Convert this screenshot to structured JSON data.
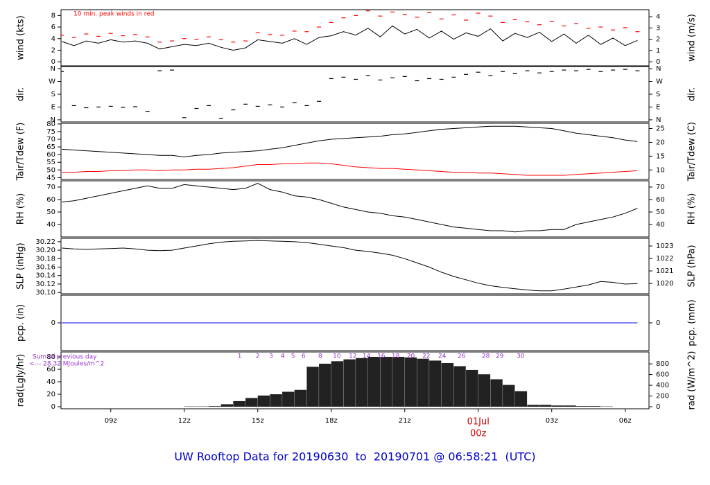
{
  "title": "UW Rooftop Data for 20190630  to  20190701 @ 06:58:21  (UTC)",
  "x_axis": {
    "xlim": [
      6.97,
      30.97
    ],
    "xticks": [
      {
        "value": 9,
        "label": "09z"
      },
      {
        "value": 12,
        "label": "12z"
      },
      {
        "value": 15,
        "label": "15z"
      },
      {
        "value": 18,
        "label": "18z"
      },
      {
        "value": 21,
        "label": "21z"
      },
      {
        "value": 24,
        "label": "00z"
      },
      {
        "value": 27,
        "label": "03z"
      },
      {
        "value": 30,
        "label": "06z"
      }
    ],
    "date_label": {
      "value": 24,
      "label": "01Jul"
    },
    "highlight_color": "#cc0000",
    "x": [
      7,
      7.5,
      8,
      8.5,
      9,
      9.5,
      10,
      10.5,
      11,
      11.5,
      12,
      12.5,
      13,
      13.5,
      14,
      14.5,
      15,
      15.5,
      16,
      16.5,
      17,
      17.5,
      18,
      18.5,
      19,
      19.5,
      20,
      20.5,
      21,
      21.5,
      22,
      22.5,
      23,
      23.5,
      24,
      24.5,
      25,
      25.5,
      26,
      26.5,
      27,
      27.5,
      28,
      28.5,
      29,
      29.5,
      30,
      30.5
    ]
  },
  "chart_data": [
    {
      "type": "line",
      "ylabel": "wind (kts)",
      "y2label": "wind (m/s)",
      "ylim": [
        -0.7,
        9
      ],
      "yticks": [
        0,
        2,
        4,
        6,
        8
      ],
      "y2lim": [
        -0.36,
        4.62
      ],
      "y2ticks": [
        0,
        1,
        2,
        3,
        4
      ],
      "annotation": {
        "text": "10 min. peak winds in red",
        "color": "#ff0000"
      },
      "series": [
        {
          "color": "#000000",
          "style": "line",
          "values": [
            3.5,
            2.8,
            3.6,
            3.2,
            3.8,
            3.4,
            3.6,
            3.2,
            2.2,
            2.6,
            3.0,
            2.8,
            3.2,
            2.5,
            2.0,
            2.4,
            3.8,
            3.5,
            3.2,
            4.0,
            3.0,
            4.2,
            4.5,
            5.2,
            4.6,
            5.8,
            4.3,
            6.2,
            4.8,
            5.6,
            4.1,
            5.3,
            3.9,
            5.0,
            4.4,
            5.7,
            3.6,
            4.9,
            4.2,
            5.1,
            3.5,
            4.8,
            3.2,
            4.6,
            3.0,
            4.1,
            2.8,
            3.7
          ]
        },
        {
          "color": "#ff0000",
          "style": "dash",
          "values": [
            4.6,
            4.2,
            4.8,
            4.4,
            4.9,
            4.5,
            4.7,
            4.3,
            3.4,
            3.6,
            4.0,
            3.9,
            4.3,
            3.8,
            3.4,
            3.6,
            5.0,
            4.7,
            4.6,
            5.3,
            5.2,
            6.0,
            6.8,
            7.6,
            8.0,
            8.8,
            7.9,
            8.6,
            8.2,
            7.7,
            8.5,
            7.4,
            8.1,
            7.2,
            8.4,
            7.9,
            6.8,
            7.3,
            6.9,
            6.4,
            7.0,
            6.2,
            6.6,
            5.8,
            6.0,
            5.5,
            5.9,
            5.2
          ]
        }
      ]
    },
    {
      "type": "scatter",
      "ylabel": "dir.",
      "y2label": "dir.",
      "ylim": [
        -15,
        375
      ],
      "yticks": [
        {
          "value": 0,
          "label": "N"
        },
        {
          "value": 90,
          "label": "E"
        },
        {
          "value": 180,
          "label": "S"
        },
        {
          "value": 270,
          "label": "W"
        },
        {
          "value": 360,
          "label": "N"
        }
      ],
      "y2lim": [
        -15,
        375
      ],
      "y2ticks": [
        {
          "value": 0,
          "label": "N"
        },
        {
          "value": 90,
          "label": "E"
        },
        {
          "value": 180,
          "label": "S"
        },
        {
          "value": 270,
          "label": "W"
        },
        {
          "value": 360,
          "label": "N"
        }
      ],
      "series": [
        {
          "color": "#000000",
          "style": "dash",
          "values": [
            340,
            100,
            85,
            90,
            95,
            88,
            92,
            60,
            345,
            350,
            15,
            80,
            100,
            10,
            70,
            110,
            95,
            105,
            90,
            120,
            100,
            130,
            290,
            300,
            285,
            310,
            280,
            295,
            305,
            275,
            290,
            285,
            300,
            320,
            335,
            310,
            340,
            325,
            345,
            330,
            340,
            350,
            345,
            355,
            340,
            350,
            355,
            345
          ]
        }
      ]
    },
    {
      "type": "line",
      "ylabel": "Tair/Tdew (F)",
      "y2label": "Tair/Tdew (C)",
      "ylim": [
        43.8,
        80.4
      ],
      "yticks": [
        45,
        50,
        55,
        60,
        65,
        70,
        75,
        80
      ],
      "y2lim": [
        6.56,
        26.89
      ],
      "y2ticks": [
        10,
        15,
        20,
        25
      ],
      "series": [
        {
          "color": "#000000",
          "style": "line",
          "values": [
            63.5,
            63,
            62.5,
            62,
            61.5,
            61,
            60.5,
            60,
            59.5,
            59.5,
            58.5,
            59.5,
            60,
            61,
            61.5,
            62,
            62.5,
            63.5,
            64.5,
            66,
            67.5,
            69,
            70,
            70.5,
            71,
            71.5,
            72,
            73,
            73.5,
            74.5,
            75.5,
            76.5,
            77,
            77.5,
            78,
            78.5,
            78.5,
            78.5,
            78,
            77.5,
            77,
            75.5,
            74,
            73,
            72,
            71,
            69.5,
            68.5
          ]
        },
        {
          "color": "#ff0000",
          "style": "line",
          "values": [
            48.5,
            48.5,
            49,
            49,
            49.5,
            49.5,
            50,
            50,
            49.5,
            50,
            50,
            50.5,
            50.5,
            51,
            51.5,
            52.5,
            53.5,
            53.5,
            54,
            54,
            54.5,
            54.5,
            54,
            53,
            52,
            51.5,
            51,
            51,
            50.5,
            50,
            49.5,
            49,
            48.5,
            48.5,
            48,
            48,
            47.5,
            47,
            46.5,
            46.5,
            46.5,
            46.5,
            47,
            47.5,
            48,
            48.5,
            49,
            49.5
          ]
        }
      ]
    },
    {
      "type": "line",
      "ylabel": "RH (%)",
      "y2label": "RH (%)",
      "ylim": [
        30,
        75
      ],
      "yticks": [
        40,
        50,
        60,
        70
      ],
      "y2lim": [
        30,
        75
      ],
      "y2ticks": [
        40,
        50,
        60,
        70
      ],
      "series": [
        {
          "color": "#000000",
          "style": "line",
          "values": [
            58,
            59,
            61,
            63,
            65,
            67,
            69,
            71,
            69,
            69,
            72,
            71,
            70,
            69,
            68,
            69,
            73,
            68,
            66,
            63,
            62,
            60,
            57,
            54,
            52,
            50,
            49,
            47,
            46,
            44,
            42,
            40,
            38,
            37,
            36,
            35,
            35,
            34,
            35,
            35,
            36,
            36,
            40,
            42,
            44,
            46,
            49,
            53
          ]
        }
      ]
    },
    {
      "type": "line",
      "ylabel": "SLP (inHg)",
      "y2label": "SLP (hPa)",
      "ylim": [
        30.097,
        30.228
      ],
      "yticks": [
        {
          "value": 30.1,
          "label": "30.10"
        },
        30.12,
        30.14,
        30.16,
        30.18,
        {
          "value": 30.2,
          "label": "30.20"
        },
        30.22
      ],
      "y2lim": [
        1019.17,
        1023.61
      ],
      "y2ticks": [
        1020,
        1021,
        1022,
        1023
      ],
      "series": [
        {
          "color": "#000000",
          "style": "line",
          "values": [
            30.205,
            30.203,
            30.202,
            30.203,
            30.204,
            30.205,
            30.203,
            30.2,
            30.199,
            30.2,
            30.205,
            30.21,
            30.215,
            30.219,
            30.221,
            30.222,
            30.223,
            30.222,
            30.221,
            30.22,
            30.218,
            30.214,
            30.21,
            30.206,
            30.2,
            30.197,
            30.193,
            30.188,
            30.18,
            30.17,
            30.16,
            30.148,
            30.138,
            30.13,
            30.122,
            30.116,
            30.112,
            30.109,
            30.106,
            30.104,
            30.104,
            30.108,
            30.113,
            30.118,
            30.126,
            30.124,
            30.12,
            30.121
          ]
        }
      ]
    },
    {
      "type": "line",
      "ylabel": "pcp. (in)",
      "y2label": "pcp. (mm)",
      "ylim": [
        -1,
        1
      ],
      "yticks": [
        0
      ],
      "y2lim": [
        -1,
        1
      ],
      "y2ticks": [
        0
      ],
      "x": [
        7,
        30.5
      ],
      "series": [
        {
          "color": "#0000ff",
          "style": "line",
          "values": [
            0,
            0
          ]
        }
      ]
    },
    {
      "type": "bar",
      "ylabel": "rad(Lgly/hr)",
      "y2label": "rad (W/m^2)",
      "ylim": [
        -3.3,
        87.8
      ],
      "yticks": [
        0,
        20,
        40,
        60,
        80
      ],
      "y2lim": [
        -38,
        1021
      ],
      "y2ticks": [
        0,
        200,
        400,
        600,
        800
      ],
      "annotations": [
        "Sum of previous day",
        "<--- 28.32 MJoules/m^2"
      ],
      "annotation_color": "#9933cc",
      "cumulative": {
        "x": [
          14.26,
          15.0,
          15.54,
          16.02,
          16.44,
          16.87,
          17.55,
          18.23,
          18.88,
          19.44,
          20.04,
          20.63,
          21.25,
          21.88,
          22.53,
          23.32,
          24.31,
          24.88,
          25.73
        ],
        "labels": [
          1,
          2,
          3,
          4,
          5,
          6,
          8,
          10,
          12,
          14,
          16,
          18,
          20,
          22,
          24,
          26,
          28,
          29,
          30
        ]
      },
      "series": [
        {
          "color": "#222222",
          "style": "bar",
          "values": [
            0,
            0,
            0,
            0,
            0,
            0,
            0,
            0,
            0,
            0,
            0.5,
            0.5,
            1,
            4,
            9,
            14,
            18,
            20,
            24,
            27,
            64,
            69,
            73,
            76,
            78,
            80,
            80,
            80,
            79,
            77,
            74,
            70,
            65,
            59,
            52,
            44,
            35,
            25,
            3,
            3,
            2,
            2,
            1,
            1,
            0.5,
            0,
            0,
            0
          ]
        }
      ]
    }
  ]
}
